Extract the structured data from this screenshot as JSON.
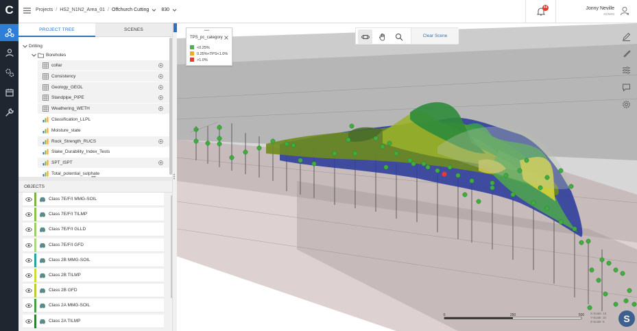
{
  "app": {
    "logo": "C"
  },
  "breadcrumb": {
    "items": [
      "Projects",
      "HS2_N1N2_Area_01",
      "Offchurch Cutting",
      "830"
    ]
  },
  "header": {
    "notifications": "44",
    "user_name": "Jonny Neville",
    "user_role": "ADMIN"
  },
  "tabs": {
    "project_tree": "PROJECT TREE",
    "scenes": "SCENES"
  },
  "tree": {
    "drilling": "Drilling",
    "boreholes": "Boreholes",
    "items": [
      "collar",
      "Consistency",
      "Geology_GEOL",
      "Standpipe_PIPE",
      "Weathering_WETH",
      "Classification_LLPL",
      "Moisture_state",
      "Rock_Strength_RUCS",
      "Slake_Durability_Index_Tests",
      "SPT_ISPT",
      "Total_potential_sulphate"
    ]
  },
  "objects": {
    "heading": "OBJECTS",
    "items": [
      {
        "label": "Class 7E/F/I MMG-SOIL",
        "color": "#7cb342"
      },
      {
        "label": "Class 7E/F/I TILMP",
        "color": "#8bc34a"
      },
      {
        "label": "Class 7E/F/I GLLD",
        "color": "#9ccc65"
      },
      {
        "label": "Class 7E/F/I GFD",
        "color": "#aed581"
      },
      {
        "label": "Class 2B MMG-SOIL",
        "color": "#26a69a"
      },
      {
        "label": "Class 2B TILMP",
        "color": "#cddc39"
      },
      {
        "label": "Class 2B GFD",
        "color": "#c0ca33"
      },
      {
        "label": "Class 2A MMG-SOIL",
        "color": "#43a047"
      },
      {
        "label": "Class 2A TILMP",
        "color": "#2e7d32"
      }
    ]
  },
  "legend": {
    "title": "TPS_pc_category",
    "items": [
      {
        "label": "<0.25%",
        "color": "#4caf50"
      },
      {
        "label": "0.25%<TPS<1.0%",
        "color": "#f5a623"
      },
      {
        "label": ">1.0%",
        "color": "#e53935"
      }
    ]
  },
  "toolbar": {
    "clear_scene": "Clear Scene"
  },
  "scale": {
    "ticks": [
      "0",
      "250",
      "500"
    ],
    "info": [
      "X-Scale: 10",
      "Y-Scale: 10",
      "Z-Scale: 5"
    ]
  },
  "viewer_logo": "S"
}
